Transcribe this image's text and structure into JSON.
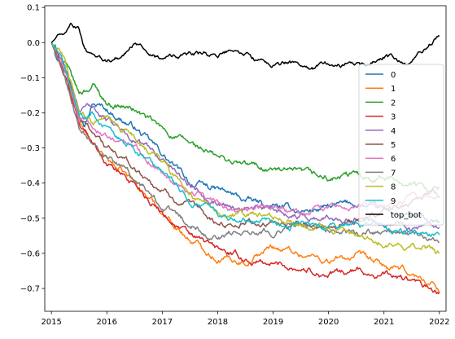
{
  "chart_data": {
    "type": "line",
    "title": "",
    "xlabel": "",
    "ylabel": "",
    "xlim": [
      2014.88,
      2022.12
    ],
    "ylim": [
      -0.765,
      0.105
    ],
    "x_ticks": [
      2015,
      2016,
      2017,
      2018,
      2019,
      2020,
      2021,
      2022
    ],
    "x_tick_labels": [
      "2015",
      "2016",
      "2017",
      "2018",
      "2019",
      "2020",
      "2021",
      "2022"
    ],
    "y_ticks": [
      0.1,
      0.0,
      -0.1,
      -0.2,
      -0.3,
      -0.4,
      -0.5,
      -0.6,
      -0.7
    ],
    "y_tick_labels": [
      "0.1",
      "0.0",
      "−0.1",
      "−0.2",
      "−0.3",
      "−0.4",
      "−0.5",
      "−0.6",
      "−0.7"
    ],
    "grid": false,
    "legend_position": "right",
    "series": [
      {
        "name": "0",
        "color": "#1f77b4",
        "x": [
          2015.0,
          2015.25,
          2015.5,
          2015.6,
          2015.75,
          2016.0,
          2016.5,
          2017.0,
          2017.5,
          2018.0,
          2018.5,
          2019.0,
          2019.5,
          2020.0,
          2020.5,
          2021.0,
          2021.5,
          2022.0
        ],
        "y": [
          0.0,
          -0.07,
          -0.18,
          -0.22,
          -0.17,
          -0.19,
          -0.24,
          -0.32,
          -0.4,
          -0.42,
          -0.45,
          -0.47,
          -0.48,
          -0.47,
          -0.46,
          -0.48,
          -0.5,
          -0.52
        ]
      },
      {
        "name": "1",
        "color": "#ff7f0e",
        "x": [
          2015.0,
          2015.25,
          2015.5,
          2015.75,
          2016.0,
          2016.5,
          2017.0,
          2017.5,
          2018.0,
          2018.5,
          2019.0,
          2019.5,
          2020.0,
          2020.5,
          2021.0,
          2021.5,
          2022.0
        ],
        "y": [
          0.0,
          -0.1,
          -0.22,
          -0.3,
          -0.33,
          -0.4,
          -0.48,
          -0.56,
          -0.61,
          -0.62,
          -0.58,
          -0.6,
          -0.62,
          -0.61,
          -0.64,
          -0.66,
          -0.7
        ]
      },
      {
        "name": "2",
        "color": "#2ca02c",
        "x": [
          2015.0,
          2015.25,
          2015.5,
          2015.75,
          2016.0,
          2016.5,
          2017.0,
          2017.5,
          2018.0,
          2018.5,
          2019.0,
          2019.5,
          2020.0,
          2020.5,
          2021.0,
          2021.5,
          2022.0
        ],
        "y": [
          0.0,
          -0.06,
          -0.15,
          -0.12,
          -0.17,
          -0.19,
          -0.25,
          -0.29,
          -0.33,
          -0.35,
          -0.36,
          -0.38,
          -0.39,
          -0.38,
          -0.38,
          -0.4,
          -0.43
        ]
      },
      {
        "name": "3",
        "color": "#d62728",
        "x": [
          2015.0,
          2015.25,
          2015.5,
          2015.75,
          2016.0,
          2016.5,
          2017.0,
          2017.5,
          2018.0,
          2018.5,
          2019.0,
          2019.5,
          2020.0,
          2020.5,
          2021.0,
          2021.5,
          2022.0
        ],
        "y": [
          0.0,
          -0.1,
          -0.23,
          -0.28,
          -0.34,
          -0.4,
          -0.48,
          -0.55,
          -0.59,
          -0.62,
          -0.63,
          -0.64,
          -0.66,
          -0.65,
          -0.66,
          -0.68,
          -0.72
        ]
      },
      {
        "name": "4",
        "color": "#9467bd",
        "x": [
          2015.0,
          2015.25,
          2015.5,
          2015.75,
          2016.0,
          2016.5,
          2017.0,
          2017.5,
          2018.0,
          2018.5,
          2019.0,
          2019.5,
          2020.0,
          2020.5,
          2021.0,
          2021.5,
          2022.0
        ],
        "y": [
          0.0,
          -0.08,
          -0.2,
          -0.18,
          -0.22,
          -0.27,
          -0.33,
          -0.4,
          -0.45,
          -0.47,
          -0.48,
          -0.49,
          -0.5,
          -0.49,
          -0.5,
          -0.52,
          -0.54
        ]
      },
      {
        "name": "5",
        "color": "#8c564b",
        "x": [
          2015.0,
          2015.25,
          2015.5,
          2015.75,
          2016.0,
          2016.5,
          2017.0,
          2017.5,
          2018.0,
          2018.5,
          2019.0,
          2019.5,
          2020.0,
          2020.5,
          2021.0,
          2021.5,
          2022.0
        ],
        "y": [
          0.0,
          -0.08,
          -0.22,
          -0.25,
          -0.3,
          -0.36,
          -0.42,
          -0.47,
          -0.52,
          -0.51,
          -0.52,
          -0.53,
          -0.52,
          -0.5,
          -0.48,
          -0.45,
          -0.42
        ]
      },
      {
        "name": "6",
        "color": "#e377c2",
        "x": [
          2015.0,
          2015.25,
          2015.5,
          2015.75,
          2016.0,
          2016.5,
          2017.0,
          2017.5,
          2018.0,
          2018.5,
          2019.0,
          2019.5,
          2020.0,
          2020.5,
          2021.0,
          2021.5,
          2022.0
        ],
        "y": [
          0.0,
          -0.08,
          -0.22,
          -0.25,
          -0.27,
          -0.3,
          -0.36,
          -0.42,
          -0.46,
          -0.48,
          -0.47,
          -0.49,
          -0.48,
          -0.47,
          -0.45,
          -0.44,
          -0.45
        ]
      },
      {
        "name": "7",
        "color": "#7f7f7f",
        "x": [
          2015.0,
          2015.25,
          2015.5,
          2015.75,
          2016.0,
          2016.5,
          2017.0,
          2017.5,
          2018.0,
          2018.5,
          2019.0,
          2019.5,
          2020.0,
          2020.5,
          2021.0,
          2021.5,
          2022.0
        ],
        "y": [
          0.0,
          -0.09,
          -0.23,
          -0.27,
          -0.32,
          -0.39,
          -0.46,
          -0.52,
          -0.55,
          -0.53,
          -0.53,
          -0.52,
          -0.53,
          -0.55,
          -0.54,
          -0.55,
          -0.56
        ]
      },
      {
        "name": "8",
        "color": "#bcbd22",
        "x": [
          2015.0,
          2015.25,
          2015.5,
          2015.75,
          2016.0,
          2016.5,
          2017.0,
          2017.5,
          2018.0,
          2018.5,
          2019.0,
          2019.5,
          2020.0,
          2020.5,
          2021.0,
          2021.5,
          2022.0
        ],
        "y": [
          0.0,
          -0.05,
          -0.2,
          -0.23,
          -0.22,
          -0.27,
          -0.34,
          -0.43,
          -0.49,
          -0.49,
          -0.5,
          -0.51,
          -0.53,
          -0.54,
          -0.56,
          -0.58,
          -0.6
        ]
      },
      {
        "name": "9",
        "color": "#17becf",
        "x": [
          2015.0,
          2015.25,
          2015.5,
          2015.75,
          2016.0,
          2016.5,
          2017.0,
          2017.5,
          2018.0,
          2018.5,
          2019.0,
          2019.5,
          2020.0,
          2020.5,
          2021.0,
          2021.5,
          2022.0
        ],
        "y": [
          0.0,
          -0.07,
          -0.21,
          -0.2,
          -0.25,
          -0.3,
          -0.38,
          -0.45,
          -0.49,
          -0.5,
          -0.51,
          -0.52,
          -0.53,
          -0.52,
          -0.53,
          -0.54,
          -0.55
        ]
      },
      {
        "name": "top_bot",
        "color": "#000000",
        "x": [
          2015.0,
          2015.2,
          2015.35,
          2015.5,
          2015.6,
          2015.75,
          2016.0,
          2016.25,
          2016.5,
          2016.75,
          2017.0,
          2017.25,
          2017.5,
          2017.75,
          2018.0,
          2018.25,
          2018.5,
          2018.75,
          2019.0,
          2019.25,
          2019.5,
          2019.75,
          2020.0,
          2020.25,
          2020.5,
          2020.75,
          2021.0,
          2021.25,
          2021.5,
          2021.75,
          2022.0
        ],
        "y": [
          0.0,
          0.03,
          0.06,
          0.04,
          -0.02,
          -0.05,
          -0.06,
          -0.04,
          0.0,
          -0.03,
          -0.05,
          -0.04,
          -0.035,
          -0.03,
          -0.04,
          -0.02,
          -0.035,
          -0.05,
          -0.06,
          -0.055,
          -0.06,
          -0.07,
          -0.06,
          -0.065,
          -0.05,
          -0.07,
          -0.04,
          -0.05,
          -0.06,
          -0.02,
          0.02
        ]
      }
    ]
  }
}
